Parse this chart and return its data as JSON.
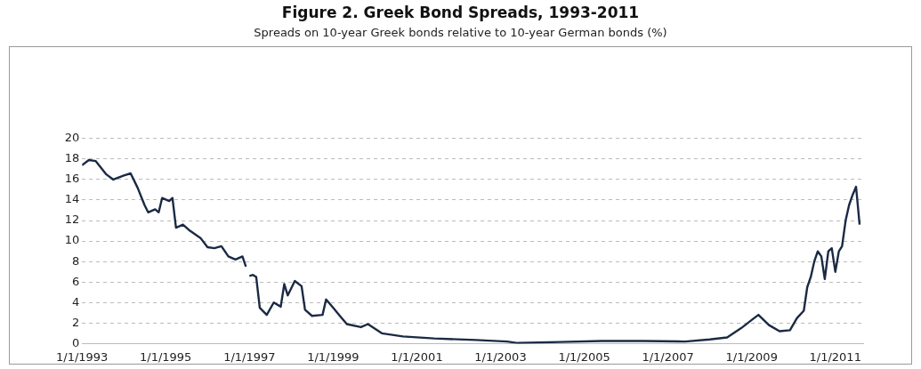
{
  "chart_data": {
    "type": "line",
    "title": "Figure 2. Greek Bond Spreads, 1993-2011",
    "subtitle": "Spreads on 10-year Greek bonds relative to 10-year German bonds (%)",
    "x": [
      "1993-01",
      "1993-03",
      "1993-05",
      "1993-08",
      "1993-10",
      "1994-01",
      "1994-03",
      "1994-05",
      "1994-07",
      "1994-08",
      "1994-10",
      "1994-11",
      "1994-12",
      "1995-02",
      "1995-03",
      "1995-04",
      "1995-06",
      "1995-08",
      "1995-11",
      "1996-01",
      "1996-03",
      "1996-05",
      "1996-07",
      "1996-09",
      "1996-11",
      "1996-12",
      "1996-12-20",
      "1997-01",
      "1997-02",
      "1997-03",
      "1997-04",
      "1997-06",
      "1997-08",
      "1997-10",
      "1997-11",
      "1997-12",
      "1998-02",
      "1998-04",
      "1998-05",
      "1998-07",
      "1998-10",
      "1998-11",
      "1999-01",
      "1999-03",
      "1999-05",
      "1999-09",
      "1999-11",
      "2000-03",
      "2000-09",
      "2001-06",
      "2002-06",
      "2003-03",
      "2003-06",
      "2004-06",
      "2005-06",
      "2006-06",
      "2007-06",
      "2008-01",
      "2008-06",
      "2008-10",
      "2009-01",
      "2009-03",
      "2009-06",
      "2009-09",
      "2009-12",
      "2010-02",
      "2010-04",
      "2010-05",
      "2010-06",
      "2010-07",
      "2010-08",
      "2010-09",
      "2010-10",
      "2010-11",
      "2010-12",
      "2011-01",
      "2011-02",
      "2011-03",
      "2011-04",
      "2011-05",
      "2011-06",
      "2011-07",
      "2011-08"
    ],
    "series": [
      {
        "color": "#1b2a44",
        "values": [
          17.4,
          17.9,
          17.8,
          16.5,
          16.0,
          16.4,
          16.6,
          15.2,
          13.5,
          12.8,
          13.1,
          12.8,
          14.2,
          13.9,
          14.2,
          11.3,
          11.6,
          11.0,
          10.3,
          9.4,
          9.3,
          9.5,
          8.5,
          8.2,
          8.5,
          7.5,
          null,
          6.6,
          6.7,
          6.5,
          3.5,
          2.8,
          4.0,
          3.6,
          5.8,
          4.7,
          6.1,
          5.6,
          3.3,
          2.7,
          2.8,
          4.3,
          3.5,
          2.7,
          1.9,
          1.6,
          1.9,
          1.0,
          0.7,
          0.5,
          0.35,
          0.2,
          0.05,
          0.15,
          0.25,
          0.25,
          0.2,
          0.4,
          0.6,
          1.5,
          2.3,
          2.8,
          1.8,
          1.2,
          1.3,
          2.5,
          3.2,
          5.5,
          6.5,
          8.0,
          9.0,
          8.5,
          6.3,
          9.0,
          9.3,
          7.0,
          9.0,
          9.5,
          12.0,
          13.5,
          14.5,
          15.3,
          11.6
        ]
      }
    ],
    "xlim": [
      "1993-01-01",
      "2011-09"
    ],
    "xticks": [
      {
        "value": "1993-01-01",
        "label": "1/1/1993"
      },
      {
        "value": "1995-01-01",
        "label": "1/1/1995"
      },
      {
        "value": "1997-01-01",
        "label": "1/1/1997"
      },
      {
        "value": "1999-01-01",
        "label": "1/1/1999"
      },
      {
        "value": "2001-01-01",
        "label": "1/1/2001"
      },
      {
        "value": "2003-01-01",
        "label": "1/1/2003"
      },
      {
        "value": "2005-01-01",
        "label": "1/1/2005"
      },
      {
        "value": "2007-01-01",
        "label": "1/1/2007"
      },
      {
        "value": "2009-01-01",
        "label": "1/1/2009"
      },
      {
        "value": "2011-01-01",
        "label": "1/1/2011"
      }
    ],
    "ylim": [
      0,
      20
    ],
    "yticks": [
      0,
      2,
      4,
      6,
      8,
      10,
      12,
      14,
      16,
      18,
      20
    ],
    "grid": "y",
    "marker": "none",
    "line_style": "solid"
  }
}
